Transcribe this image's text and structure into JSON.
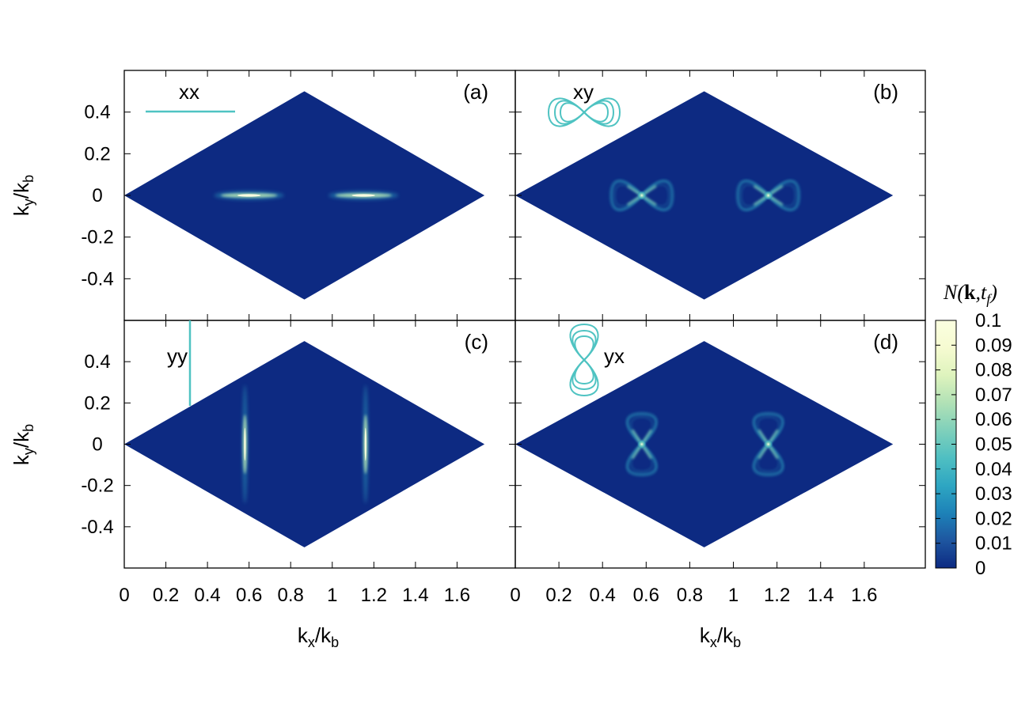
{
  "chart_data": {
    "type": "heatmap",
    "layout": "2x2",
    "xlabel": "k_x/k_b",
    "ylabel": "k_y/k_b",
    "xlim": [
      0,
      1.88
    ],
    "ylim": [
      -0.6,
      0.6
    ],
    "xticks": [
      "0",
      "0.2",
      "0.4",
      "0.6",
      "0.8",
      "1",
      "1.2",
      "1.4",
      "1.6"
    ],
    "yticks": [
      "0.4",
      "0.2",
      "0",
      "-0.2",
      "-0.4"
    ],
    "brillouin_zone": {
      "vertices": [
        [
          0,
          0
        ],
        [
          0.866,
          0.5
        ],
        [
          1.732,
          0
        ],
        [
          0.866,
          -0.5
        ]
      ]
    },
    "colors": {
      "background": "#0d2a82",
      "accent": "#4fc3c2"
    },
    "colorbar": {
      "title": "N(k,t_f)",
      "ticks": [
        "0.1",
        "0.09",
        "0.08",
        "0.07",
        "0.06",
        "0.05",
        "0.04",
        "0.03",
        "0.02",
        "0.01",
        "0"
      ],
      "min": 0,
      "max": 0.1,
      "colors": [
        "#0d2a82",
        "#1e56a0",
        "#1d82b8",
        "#2ea6c2",
        "#4fbfc2",
        "#7fd0bb",
        "#b1e1b6",
        "#def3bd",
        "#f6fbd1",
        "#fbffe0"
      ]
    },
    "panels": [
      {
        "letter": "(a)",
        "legend": "xx",
        "glyph": "horizontal-line",
        "features": [
          {
            "type": "ellipse",
            "cx": 0.6,
            "cy": 0.0,
            "rx": 0.16,
            "ry": 0.012
          },
          {
            "type": "ellipse",
            "cx": 1.15,
            "cy": 0.0,
            "rx": 0.16,
            "ry": 0.012
          }
        ]
      },
      {
        "letter": "(b)",
        "legend": "xy",
        "glyph": "horizontal-bowtie",
        "features": [
          {
            "type": "bowtie-h",
            "cx": 0.58,
            "cy": 0.0
          },
          {
            "type": "bowtie-h",
            "cx": 1.16,
            "cy": 0.0
          }
        ]
      },
      {
        "letter": "(c)",
        "legend": "yy",
        "glyph": "vertical-line",
        "features": [
          {
            "type": "ellipse",
            "cx": 0.58,
            "cy": 0.0,
            "rx": 0.012,
            "ry": 0.16
          },
          {
            "type": "ellipse",
            "cx": 1.16,
            "cy": 0.0,
            "rx": 0.012,
            "ry": 0.16
          }
        ]
      },
      {
        "letter": "(d)",
        "legend": "yx",
        "glyph": "vertical-bowtie",
        "features": [
          {
            "type": "bowtie-v",
            "cx": 0.58,
            "cy": 0.0
          },
          {
            "type": "bowtie-v",
            "cx": 1.16,
            "cy": 0.0
          }
        ]
      }
    ]
  }
}
